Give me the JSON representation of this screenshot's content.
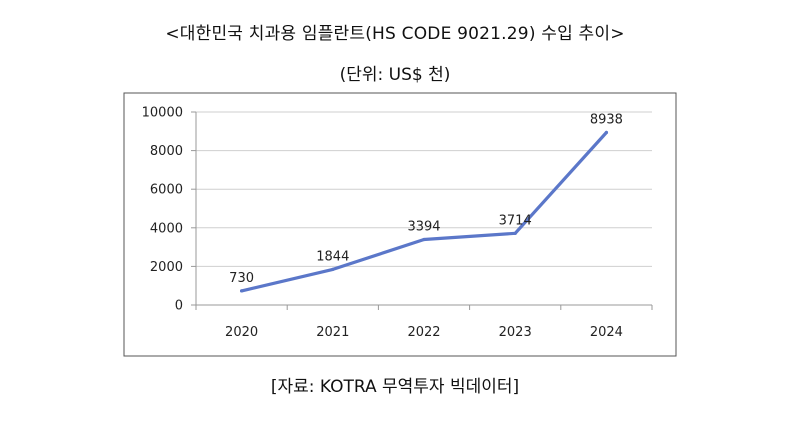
{
  "header": {
    "title": "<대한민국 치과용 임플란트(HS CODE 9021.29) 수입 추이>",
    "unit": "(단위: US$ 천)"
  },
  "footer": {
    "source": "[자료: KOTRA 무역투자 빅데이터]"
  },
  "chart_data": {
    "type": "line",
    "title": "<대한민국 치과용 임플란트(HS CODE 9021.29) 수입 추이>",
    "categories": [
      "2020",
      "2021",
      "2022",
      "2023",
      "2024"
    ],
    "series": [
      {
        "values": [
          730,
          1844,
          3394,
          3714,
          8938
        ],
        "color": "#5b77c9"
      }
    ],
    "yticks": [
      "0",
      "2000",
      "4000",
      "6000",
      "8000",
      "10000"
    ],
    "ylim": [
      0,
      10000
    ],
    "grid": true,
    "legend": "none"
  }
}
